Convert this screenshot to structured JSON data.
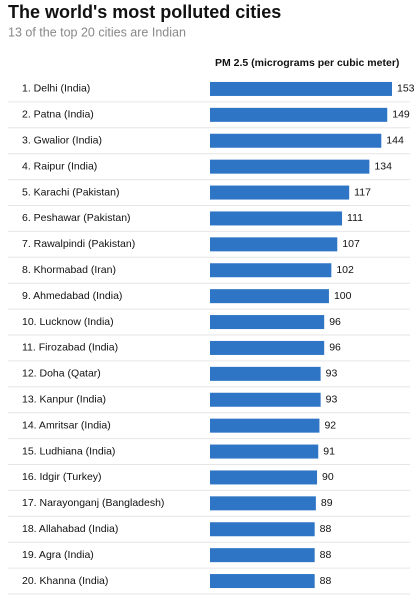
{
  "chart_data": {
    "type": "bar",
    "orientation": "horizontal",
    "title": "The world's most polluted cities",
    "subtitle": "13 of the top 20 cities are Indian",
    "x_label": "PM 2.5 (micrograms per cubic meter)",
    "categories": [
      "1. Delhi (India)",
      "2. Patna (India)",
      "3. Gwalior (India)",
      "4. Raipur (India)",
      "5. Karachi (Pakistan)",
      "6. Peshawar (Pakistan)",
      "7. Rawalpindi (Pakistan)",
      "8. Khormabad (Iran)",
      "9. Ahmedabad (India)",
      "10. Lucknow (India)",
      "11. Firozabad (India)",
      "12. Doha (Qatar)",
      "13. Kanpur (India)",
      "14. Amritsar (India)",
      "15. Ludhiana (India)",
      "16. Idgir (Turkey)",
      "17. Narayonganj (Bangladesh)",
      "18. Allahabad (India)",
      "19. Agra (India)",
      "20. Khanna (India)"
    ],
    "values": [
      153,
      149,
      144,
      134,
      117,
      111,
      107,
      102,
      100,
      96,
      96,
      93,
      93,
      92,
      91,
      90,
      89,
      88,
      88,
      88
    ],
    "color": "#2e75c6"
  }
}
